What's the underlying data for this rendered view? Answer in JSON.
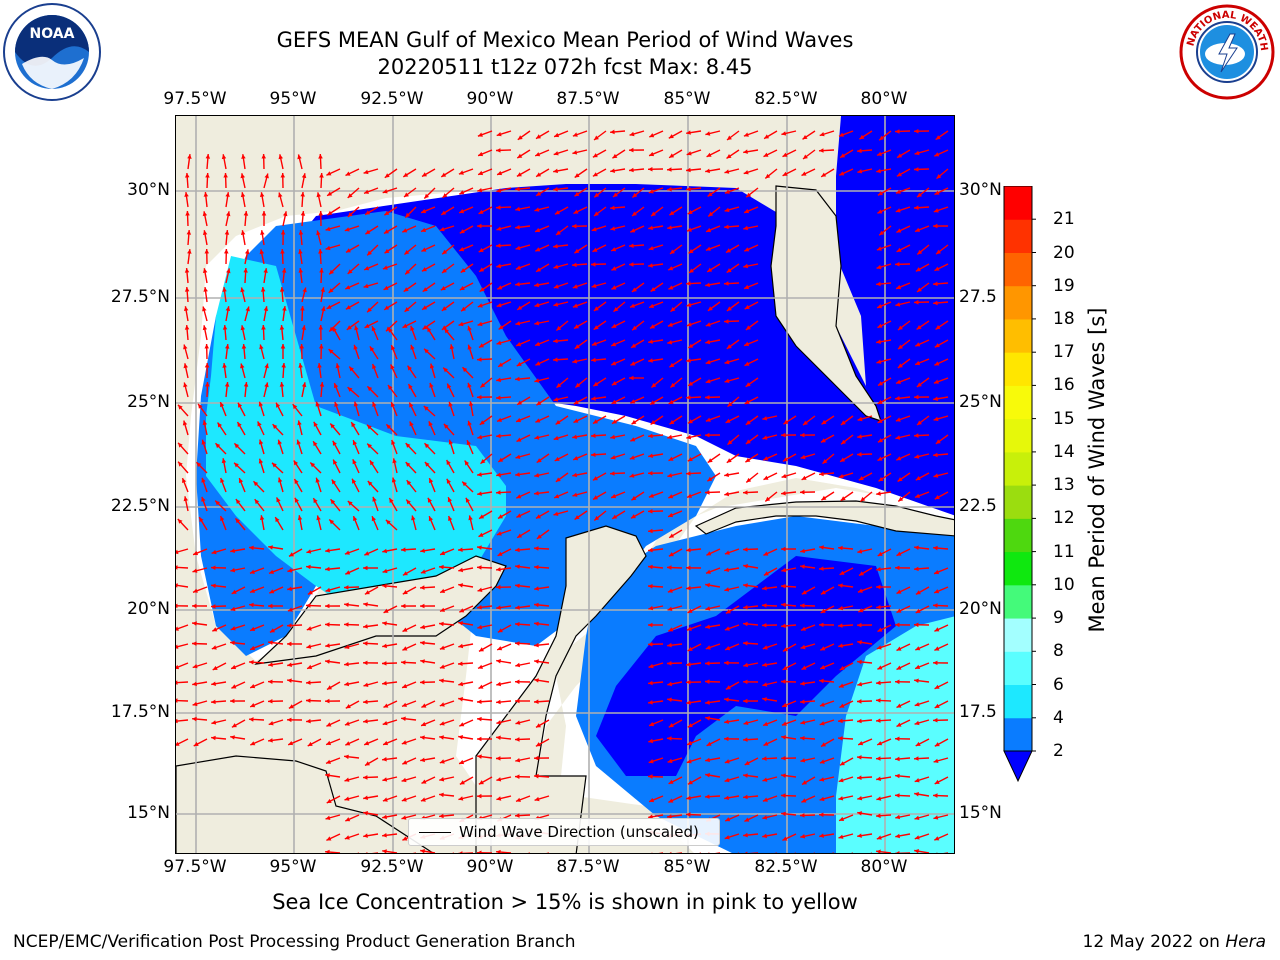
{
  "header": {
    "title_line1": "GEFS MEAN Gulf of Mexico Mean Period of Wind Waves",
    "title_line2": "20220511 t12z 072h fcst   Max: 8.45"
  },
  "logos": {
    "noaa": {
      "text": "NOAA",
      "ring_text": "NATIONAL OCEANIC AND ATMOSPHERIC ADMINISTRATION · U.S. DEPARTMENT OF COMMERCE"
    },
    "nws": {
      "ring_text": "NATIONAL WEATHER SERVICE"
    }
  },
  "map": {
    "lon_labels": [
      "97.5°W",
      "95°W",
      "92.5°W",
      "90°W",
      "87.5°W",
      "85°W",
      "82.5°W",
      "80°W"
    ],
    "lat_labels": [
      "30°N",
      "27.5°N",
      "25°N",
      "22.5°N",
      "20°N",
      "17.5°N",
      "15°N"
    ],
    "lat_labels_right": [
      "30°N",
      "27.5",
      "25°N",
      "22.5",
      "20°N",
      "17.5",
      "15°N"
    ],
    "legend_label": "Wind Wave Direction (unscaled)",
    "colors": {
      "land": "#efedde",
      "arrow": "#ff0000",
      "grid": "#b0b0b0"
    }
  },
  "colorbar": {
    "title": "Mean Period of Wind Waves [s]",
    "ticks": [
      "2",
      "4",
      "6",
      "8",
      "9",
      "10",
      "11",
      "12",
      "13",
      "14",
      "15",
      "16",
      "17",
      "18",
      "19",
      "20",
      "21"
    ],
    "colors": [
      "#0a7cff",
      "#1de8ff",
      "#5afeff",
      "#a3ffff",
      "#44fa7a",
      "#0fe80f",
      "#4ed80f",
      "#9bdd0f",
      "#c8f00a",
      "#e6f80a",
      "#f8fa0a",
      "#ffe600",
      "#ffbe00",
      "#ff9600",
      "#ff6400",
      "#ff3200",
      "#ff0000"
    ],
    "under_color": "#0000ff"
  },
  "footer": {
    "sea_ice_note": "Sea Ice Concentration > 15% is shown in pink to yellow",
    "credit": "NCEP/EMC/Verification Post Processing Product Generation Branch",
    "date": "12 May 2022 on",
    "host": "Hera"
  }
}
